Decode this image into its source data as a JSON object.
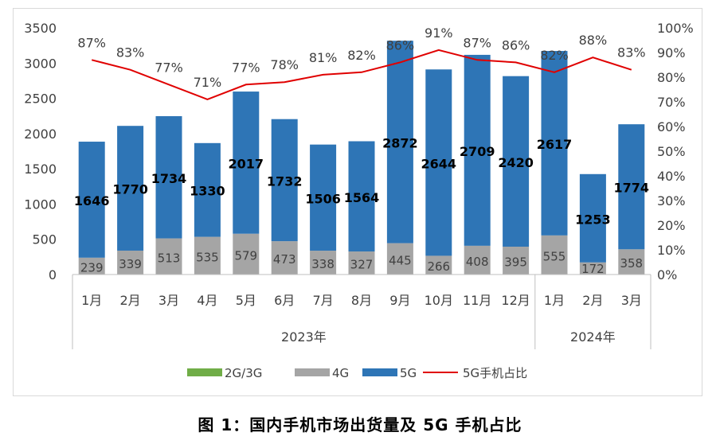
{
  "caption": "图 1：国内手机市场出货量及 5G 手机占比",
  "chart_data": {
    "type": "bar",
    "stacked": true,
    "categories": [
      "1月",
      "2月",
      "3月",
      "4月",
      "5月",
      "6月",
      "7月",
      "8月",
      "9月",
      "10月",
      "11月",
      "12月",
      "1月",
      "2月",
      "3月"
    ],
    "year_groups": [
      {
        "label": "2023年",
        "count": 12
      },
      {
        "label": "2024年",
        "count": 3
      }
    ],
    "series": [
      {
        "name": "2G/3G",
        "type": "bar",
        "color": "#70ad47",
        "values": [
          0,
          0,
          0,
          0,
          0,
          0,
          0,
          0,
          0,
          0,
          0,
          0,
          0,
          0,
          0
        ]
      },
      {
        "name": "4G",
        "type": "bar",
        "color": "#a5a5a5",
        "values": [
          239,
          339,
          513,
          535,
          579,
          473,
          338,
          327,
          445,
          266,
          408,
          395,
          555,
          172,
          358
        ]
      },
      {
        "name": "5G",
        "type": "bar",
        "color": "#2e75b6",
        "values": [
          1646,
          1770,
          1734,
          1330,
          2017,
          1732,
          1506,
          1564,
          2872,
          2644,
          2709,
          2420,
          2617,
          1253,
          1774
        ]
      },
      {
        "name": "5G手机占比",
        "type": "line",
        "axis": "right",
        "color": "#e00000",
        "values": [
          87,
          83,
          77,
          71,
          77,
          78,
          81,
          82,
          86,
          91,
          87,
          86,
          82,
          88,
          83
        ]
      }
    ],
    "pct_labels": [
      "87%",
      "83%",
      "77%",
      "71%",
      "77%",
      "78%",
      "81%",
      "82%",
      "86%",
      "91%",
      "87%",
      "86%",
      "82%",
      "88%",
      "83%"
    ],
    "y_left": {
      "ticks": [
        "0",
        "500",
        "1000",
        "1500",
        "2000",
        "2500",
        "3000",
        "3500"
      ],
      "ylim": [
        0,
        3500
      ]
    },
    "y_right": {
      "ticks": [
        "0%",
        "10%",
        "20%",
        "30%",
        "40%",
        "50%",
        "60%",
        "70%",
        "80%",
        "90%",
        "100%"
      ],
      "ylim": [
        0,
        100
      ]
    },
    "legend": [
      "2G/3G",
      "4G",
      "5G",
      "5G手机占比"
    ],
    "legend_position": "bottom",
    "grid": false
  }
}
